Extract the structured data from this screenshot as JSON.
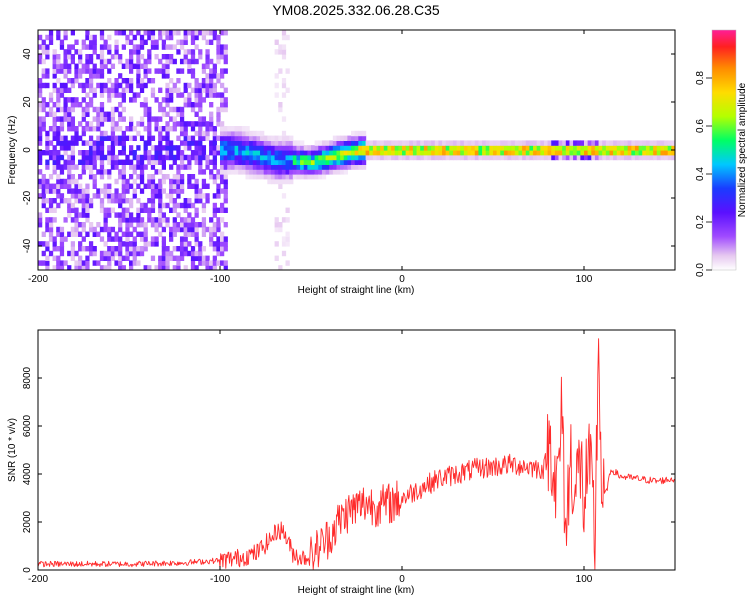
{
  "title": "YM08.2025.332.06.28.C35",
  "chart_data": [
    {
      "type": "heatmap",
      "title": "YM08.2025.332.06.28.C35",
      "xlabel": "Height of straight line (km)",
      "ylabel": "Frequency (Hz)",
      "xlim": [
        -200,
        150
      ],
      "ylim": [
        -50,
        50
      ],
      "xticks": [
        -200,
        -100,
        0,
        100
      ],
      "yticks": [
        -40,
        -20,
        0,
        20,
        40
      ],
      "colorbar": {
        "label": "Normalized spectral amplitude",
        "range": [
          0,
          1
        ],
        "ticks": [
          0.0,
          0.2,
          0.4,
          0.6,
          0.8
        ],
        "colormap": [
          "#ffffff",
          "#e6c8f0",
          "#a04bff",
          "#5a10ff",
          "#1a3cff",
          "#00c8ff",
          "#00ff64",
          "#b4ff00",
          "#ffdc00",
          "#ff8c00",
          "#ff2020",
          "#ff1e96"
        ]
      },
      "ridge": {
        "description": "dominant frequency track",
        "x": [
          -100,
          -90,
          -80,
          -70,
          -60,
          -50,
          -40,
          -30,
          -20,
          -10,
          0,
          50,
          100,
          150
        ],
        "y": [
          0,
          0,
          -2,
          -4,
          -4,
          -5,
          -3,
          -1,
          0,
          0,
          0,
          0,
          0,
          0
        ]
      }
    },
    {
      "type": "line",
      "xlabel": "Height of straight line (km)",
      "ylabel": "SNR (10 * v/v)",
      "xlim": [
        -200,
        150
      ],
      "ylim": [
        0,
        10000
      ],
      "xticks": [
        -200,
        -100,
        0,
        100
      ],
      "yticks": [
        0,
        2000,
        4000,
        6000,
        8000
      ],
      "color": "#ff2a2a",
      "series": [
        {
          "name": "SNR",
          "x": [
            -200,
            -150,
            -120,
            -100,
            -90,
            -80,
            -72,
            -68,
            -65,
            -60,
            -55,
            -50,
            -45,
            -40,
            -35,
            -30,
            -25,
            -20,
            -15,
            -10,
            -5,
            0,
            10,
            20,
            30,
            40,
            50,
            60,
            70,
            78,
            82,
            85,
            88,
            90,
            93,
            95,
            98,
            100,
            102,
            104,
            106,
            108,
            110,
            115,
            120,
            130,
            140,
            150
          ],
          "y": [
            250,
            250,
            300,
            400,
            500,
            700,
            1300,
            1700,
            1600,
            700,
            500,
            600,
            1000,
            1400,
            2000,
            2400,
            2600,
            2800,
            2700,
            2700,
            2800,
            3000,
            3400,
            3800,
            4000,
            4200,
            4300,
            4400,
            4300,
            4200,
            5500,
            3000,
            6500,
            1500,
            5000,
            3000,
            4500,
            2800,
            4200,
            3500,
            1200,
            9500,
            2500,
            4200,
            3900,
            3800,
            3700,
            3800
          ]
        }
      ]
    }
  ]
}
